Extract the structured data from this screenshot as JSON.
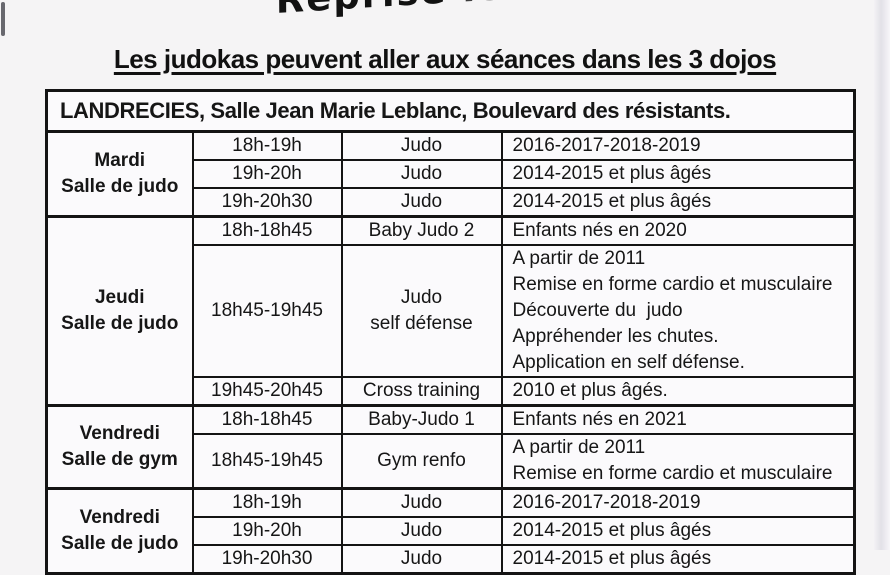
{
  "page": {
    "handwritten_note": "Reprise le mar",
    "heading": "Les judokas peuvent aller aux séances dans les 3 dojos"
  },
  "table": {
    "header": "LANDRECIES, Salle Jean Marie Leblanc, Boulevard des résistants.",
    "groups": [
      {
        "day": "Mardi",
        "venue": "Salle de judo",
        "sessions": [
          {
            "time": "18h-19h",
            "activity_lines": [
              "Judo"
            ],
            "details": [
              "2016-2017-2018-2019"
            ]
          },
          {
            "time": "19h-20h",
            "activity_lines": [
              "Judo"
            ],
            "details": [
              "2014-2015 et plus âgés"
            ]
          },
          {
            "time": "19h-20h30",
            "activity_lines": [
              "Judo"
            ],
            "details": [
              "2014-2015 et plus âgés"
            ]
          }
        ]
      },
      {
        "day": "Jeudi",
        "venue": "Salle de judo",
        "sessions": [
          {
            "time": "18h-18h45",
            "activity_lines": [
              "Baby Judo 2"
            ],
            "details": [
              "Enfants nés en 2020"
            ]
          },
          {
            "time": "18h45-19h45",
            "activity_lines": [
              "Judo",
              "self défense"
            ],
            "details": [
              "A partir de 2011",
              "Remise en forme cardio et musculaire",
              "Découverte du  judo",
              "Appréhender les chutes.",
              "Application en self défense."
            ]
          },
          {
            "time": "19h45-20h45",
            "activity_lines": [
              "Cross training"
            ],
            "details": [
              "2010 et plus âgés."
            ]
          }
        ]
      },
      {
        "day": "Vendredi",
        "venue": "Salle de gym",
        "sessions": [
          {
            "time": "18h-18h45",
            "activity_lines": [
              "Baby-Judo 1"
            ],
            "details": [
              "Enfants nés en 2021"
            ]
          },
          {
            "time": "18h45-19h45",
            "activity_lines": [
              "Gym renfo"
            ],
            "details": [
              "A partir de 2011",
              "Remise en forme cardio et musculaire"
            ]
          }
        ]
      },
      {
        "day": "Vendredi",
        "venue": "Salle de judo",
        "sessions": [
          {
            "time": "18h-19h",
            "activity_lines": [
              "Judo"
            ],
            "details": [
              "2016-2017-2018-2019"
            ]
          },
          {
            "time": "19h-20h",
            "activity_lines": [
              "Judo"
            ],
            "details": [
              "2014-2015 et plus âgés"
            ]
          },
          {
            "time": "19h-20h30",
            "activity_lines": [
              "Judo"
            ],
            "details": [
              "2014-2015 et plus âgés"
            ]
          }
        ]
      }
    ]
  }
}
